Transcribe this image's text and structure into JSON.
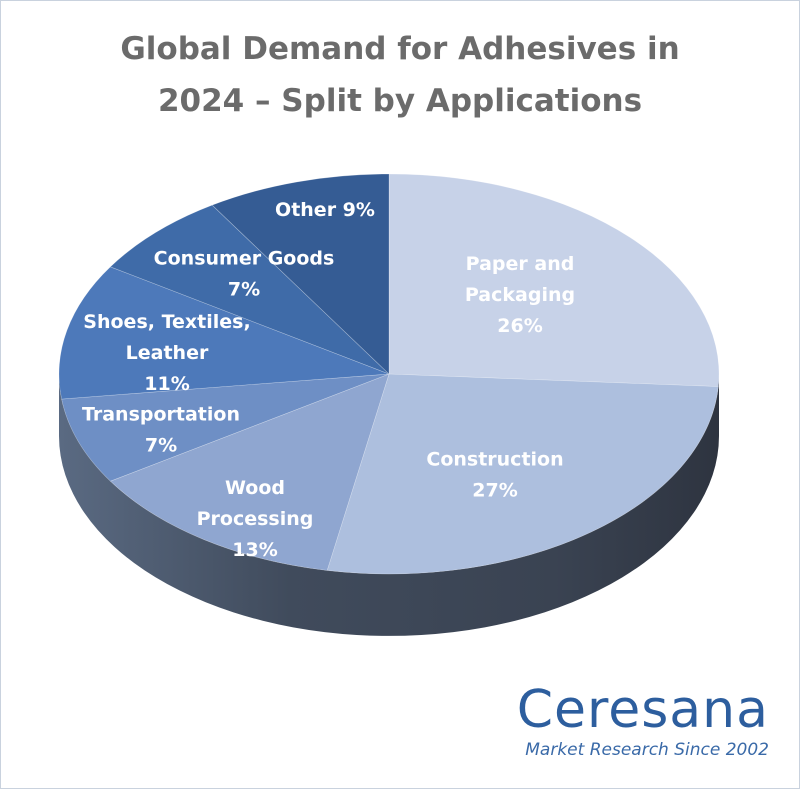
{
  "chart_data": {
    "type": "pie",
    "title": [
      "Global Demand for Adhesives in",
      "2024 – Split by Applications"
    ],
    "slices": [
      {
        "label_lines": [
          "Paper and",
          "Packaging",
          "26%"
        ],
        "value": 26,
        "color": "#c7d2e8"
      },
      {
        "label_lines": [
          "Construction",
          "27%"
        ],
        "value": 27,
        "color": "#adbfde"
      },
      {
        "label_lines": [
          "Wood",
          "Processing",
          "13%"
        ],
        "value": 13,
        "color": "#8fa6d0"
      },
      {
        "label_lines": [
          "Transportation",
          "7%"
        ],
        "value": 7,
        "color": "#6e8fc5"
      },
      {
        "label_lines": [
          "Shoes, Textiles,",
          "Leather",
          "11%"
        ],
        "value": 11,
        "color": "#4d79ba"
      },
      {
        "label_lines": [
          "Consumer Goods",
          "7%"
        ],
        "value": 7,
        "color": "#3f6ba8"
      },
      {
        "label_lines": [
          "Other 9%"
        ],
        "value": 9,
        "color": "#355c94"
      }
    ],
    "start": "12 o'clock, clockwise",
    "style": "3D tilted pie"
  },
  "logo": {
    "name": "Ceresana",
    "tagline": "Market Research Since 2002"
  }
}
